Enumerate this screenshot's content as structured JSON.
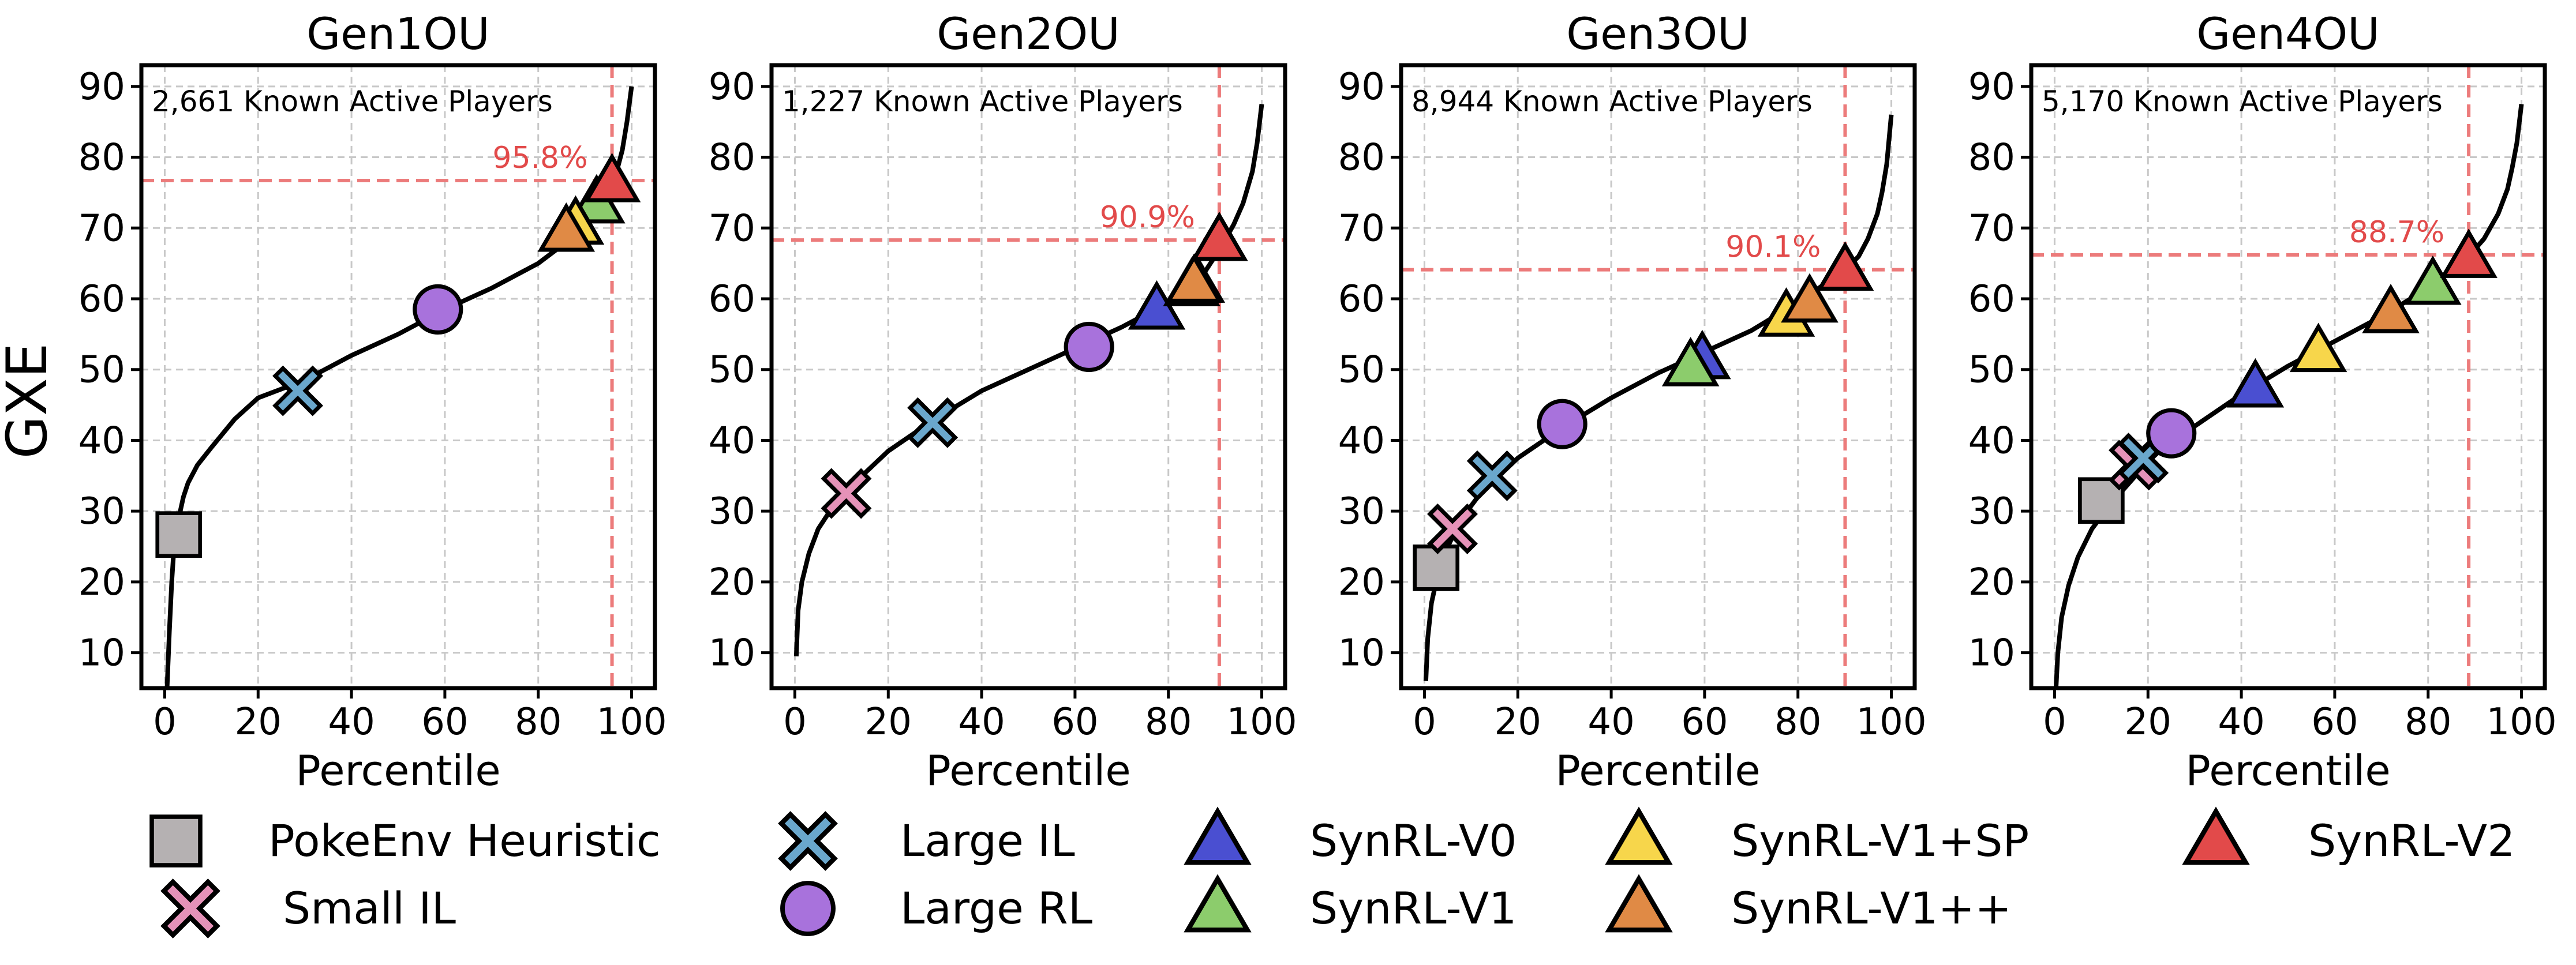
{
  "figure": {
    "y_axis_label": "GXE"
  },
  "legend": {
    "items": [
      {
        "key": "pokeenv_heuristic",
        "label": "PokeEnv Heuristic",
        "marker": "square",
        "color": "#b5b1b2"
      },
      {
        "key": "small_il",
        "label": "Small IL",
        "marker": "x",
        "color": "#e592b8"
      },
      {
        "key": "large_il",
        "label": "Large IL",
        "marker": "x",
        "color": "#6aa7cc"
      },
      {
        "key": "large_rl",
        "label": "Large RL",
        "marker": "circle",
        "color": "#a872dc"
      },
      {
        "key": "synrl_v0",
        "label": "SynRL-V0",
        "marker": "triangle",
        "color": "#4a4fd1"
      },
      {
        "key": "synrl_v1",
        "label": "SynRL-V1",
        "marker": "triangle",
        "color": "#8ccc6c"
      },
      {
        "key": "synrl_v1sp",
        "label": "SynRL-V1+SP",
        "marker": "triangle",
        "color": "#f7d64b"
      },
      {
        "key": "synrl_v1pp",
        "label": "SynRL-V1++",
        "marker": "triangle",
        "color": "#e08a45"
      },
      {
        "key": "synrl_v2",
        "label": "SynRL-V2",
        "marker": "triangle",
        "color": "#e24a4a"
      }
    ]
  },
  "chart_data": [
    {
      "type": "line",
      "title": "Gen1OU",
      "xlabel": "Percentile",
      "ylabel": "GXE",
      "xlim": [
        -5,
        105
      ],
      "ylim": [
        5,
        93
      ],
      "xticks": [
        0,
        20,
        40,
        60,
        80,
        100
      ],
      "yticks": [
        10,
        20,
        30,
        40,
        50,
        60,
        70,
        80,
        90
      ],
      "grid": true,
      "annotation": "2,661 Known Active Players",
      "threshold": {
        "percentile": 95.8,
        "gxe": 76.7,
        "label": "95.8%"
      },
      "curve": {
        "x": [
          0.5,
          1,
          1.5,
          2,
          3,
          4,
          5,
          7,
          10,
          15,
          20,
          30,
          40,
          50,
          60,
          70,
          80,
          85,
          90,
          93,
          95,
          96,
          97,
          98,
          99,
          100
        ],
        "y": [
          5,
          13,
          20,
          25,
          29,
          32,
          34,
          36.5,
          39,
          43,
          46,
          48.5,
          52,
          55,
          58.5,
          61.5,
          65,
          67.5,
          70.5,
          73,
          75,
          76.5,
          78.5,
          81,
          85,
          90
        ]
      },
      "points": [
        {
          "key": "pokeenv_heuristic",
          "x": 3,
          "y": 26.7
        },
        {
          "key": "large_il",
          "x": 28.5,
          "y": 47
        },
        {
          "key": "large_rl",
          "x": 58.5,
          "y": 58.5
        },
        {
          "key": "synrl_v1pp",
          "x": 86,
          "y": 69.5
        },
        {
          "key": "synrl_v1sp",
          "x": 88,
          "y": 70.5
        },
        {
          "key": "synrl_v1",
          "x": 92.5,
          "y": 73.5
        },
        {
          "key": "synrl_v2",
          "x": 95.8,
          "y": 76.5
        }
      ]
    },
    {
      "type": "line",
      "title": "Gen2OU",
      "xlabel": "Percentile",
      "xlim": [
        -5,
        105
      ],
      "ylim": [
        5,
        93
      ],
      "xticks": [
        0,
        20,
        40,
        60,
        80,
        100
      ],
      "yticks": [
        10,
        20,
        30,
        40,
        50,
        60,
        70,
        80,
        90
      ],
      "grid": true,
      "annotation": "1,227 Known Active Players",
      "threshold": {
        "percentile": 90.9,
        "gxe": 68.3,
        "label": "90.9%"
      },
      "curve": {
        "x": [
          0.3,
          0.7,
          1.5,
          3,
          5,
          8,
          12,
          20,
          30,
          40,
          50,
          60,
          70,
          80,
          85,
          88,
          91,
          94,
          96,
          98,
          99,
          100
        ],
        "y": [
          9.5,
          16,
          20,
          24,
          27.5,
          30.5,
          33.5,
          38.5,
          43,
          47,
          50,
          53,
          56,
          59.5,
          62,
          64,
          67,
          70.5,
          73.5,
          78,
          82,
          87.5
        ]
      },
      "points": [
        {
          "key": "small_il",
          "x": 11,
          "y": 32.5
        },
        {
          "key": "large_il",
          "x": 29.5,
          "y": 42.5
        },
        {
          "key": "large_rl",
          "x": 63,
          "y": 53.2
        },
        {
          "key": "synrl_v0",
          "x": 77.5,
          "y": 58.5
        },
        {
          "key": "synrl_v1",
          "x": 85,
          "y": 61.8
        },
        {
          "key": "synrl_v1sp",
          "x": 86,
          "y": 62.3
        },
        {
          "key": "synrl_v1pp",
          "x": 85.5,
          "y": 62.3
        },
        {
          "key": "synrl_v2",
          "x": 90.9,
          "y": 68.2
        }
      ]
    },
    {
      "type": "line",
      "title": "Gen3OU",
      "xlabel": "Percentile",
      "xlim": [
        -5,
        105
      ],
      "ylim": [
        5,
        93
      ],
      "xticks": [
        0,
        20,
        40,
        60,
        80,
        100
      ],
      "yticks": [
        10,
        20,
        30,
        40,
        50,
        60,
        70,
        80,
        90
      ],
      "grid": true,
      "annotation": "8,944 Known Active Players",
      "threshold": {
        "percentile": 90.1,
        "gxe": 64.1,
        "label": "90.1%"
      },
      "curve": {
        "x": [
          0.3,
          0.7,
          1.5,
          3,
          5,
          8,
          12,
          16,
          20,
          30,
          40,
          50,
          60,
          70,
          80,
          90,
          93,
          95,
          97,
          98,
          99,
          100
        ],
        "y": [
          6,
          12,
          17,
          21.5,
          25,
          29,
          32.5,
          35,
          37.5,
          42,
          46,
          49.5,
          52.5,
          55.5,
          59.5,
          64,
          66,
          68.5,
          72,
          75,
          79,
          86
        ]
      },
      "points": [
        {
          "key": "pokeenv_heuristic",
          "x": 2.5,
          "y": 22
        },
        {
          "key": "small_il",
          "x": 6,
          "y": 27.5
        },
        {
          "key": "large_il",
          "x": 14.5,
          "y": 35
        },
        {
          "key": "large_rl",
          "x": 29.5,
          "y": 42.3
        },
        {
          "key": "synrl_v0",
          "x": 59.5,
          "y": 51.5
        },
        {
          "key": "synrl_v1",
          "x": 57,
          "y": 50.5
        },
        {
          "key": "synrl_v1sp",
          "x": 77.5,
          "y": 57.5
        },
        {
          "key": "synrl_v1pp",
          "x": 82.5,
          "y": 59.5
        },
        {
          "key": "synrl_v2",
          "x": 90.1,
          "y": 64
        }
      ]
    },
    {
      "type": "line",
      "title": "Gen4OU",
      "xlabel": "Percentile",
      "xlim": [
        -5,
        105
      ],
      "ylim": [
        5,
        93
      ],
      "xticks": [
        0,
        20,
        40,
        60,
        80,
        100
      ],
      "yticks": [
        10,
        20,
        30,
        40,
        50,
        60,
        70,
        80,
        90
      ],
      "grid": true,
      "annotation": "5,170 Known Active Players",
      "threshold": {
        "percentile": 88.7,
        "gxe": 66.2,
        "label": "88.7%"
      },
      "curve": {
        "x": [
          0.3,
          0.7,
          1.5,
          3,
          5,
          8,
          12,
          16,
          20,
          25,
          30,
          40,
          50,
          60,
          70,
          80,
          88.7,
          92,
          95,
          97,
          98,
          99,
          100
        ],
        "y": [
          5,
          10,
          15,
          19.5,
          23.5,
          27.5,
          31,
          34,
          37,
          40,
          42,
          46.5,
          50.5,
          54,
          57.5,
          61.5,
          66,
          68.5,
          72,
          75.5,
          78.5,
          82,
          87.5
        ]
      },
      "points": [
        {
          "key": "pokeenv_heuristic",
          "x": 10,
          "y": 31.5
        },
        {
          "key": "small_il",
          "x": 17,
          "y": 36.5
        },
        {
          "key": "large_il",
          "x": 19,
          "y": 37.5
        },
        {
          "key": "large_rl",
          "x": 25,
          "y": 41
        },
        {
          "key": "synrl_v0",
          "x": 43,
          "y": 47.5
        },
        {
          "key": "synrl_v1sp",
          "x": 56.5,
          "y": 52.5
        },
        {
          "key": "synrl_v1pp",
          "x": 72,
          "y": 58
        },
        {
          "key": "synrl_v1",
          "x": 81,
          "y": 62
        },
        {
          "key": "synrl_v2",
          "x": 88.7,
          "y": 65.8
        }
      ]
    }
  ]
}
